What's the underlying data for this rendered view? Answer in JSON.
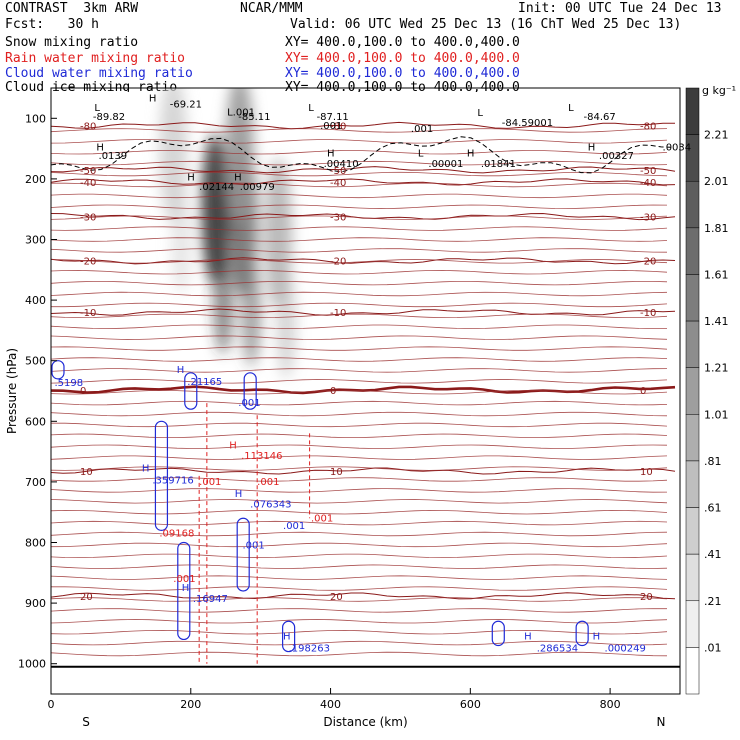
{
  "header": {
    "left1": "CONTRAST  3km ARW",
    "center1": "NCAR/MMM",
    "right1": "Init: 00 UTC Tue 24 Dec 13",
    "left2": "Fcst:   30 h",
    "right2": "Valid: 06 UTC Wed 25 Dec 13 (16 ChT Wed 25 Dec 13)",
    "fields": [
      {
        "label": "Snow mixing ratio",
        "xy": "XY= 400.0,100.0 to 400.0,400.0",
        "color": "#000000"
      },
      {
        "label": "Rain water mixing ratio",
        "xy": "XY= 400.0,100.0 to 400.0,400.0",
        "color": "#e02020"
      },
      {
        "label": "Cloud water mixing ratio",
        "xy": "XY= 400.0,100.0 to 400.0,400.0",
        "color": "#1f2ad6"
      },
      {
        "label": "Cloud ice mixing ratio",
        "xy": "XY= 400.0,100.0 to 400.0,400.0",
        "color": "#000000"
      }
    ]
  },
  "chart_data": {
    "type": "heatmap",
    "xlabel": "Distance (km)",
    "ylabel": "Pressure (hPa)",
    "xlim": [
      0,
      900
    ],
    "ylim": [
      1050,
      50
    ],
    "x_ticks": [
      0,
      200,
      400,
      600,
      800
    ],
    "y_ticks": [
      100,
      200,
      300,
      400,
      500,
      600,
      700,
      800,
      900,
      1000
    ],
    "x_end_labels": {
      "left": "S",
      "right": "N"
    },
    "colorbar": {
      "unit": "g kg⁻¹",
      "labels": [
        "2.21",
        "2.01",
        "1.81",
        "1.61",
        "1.41",
        "1.21",
        "1.01",
        ".81",
        ".61",
        ".41",
        ".21",
        ".01"
      ]
    },
    "snow_cores": [
      {
        "x": 235,
        "p": 250,
        "max": 1.9
      },
      {
        "x": 275,
        "p": 270,
        "max": 1.5
      },
      {
        "x": 325,
        "p": 290,
        "max": 0.6
      },
      {
        "x": 270,
        "p": 150,
        "max": 0.9
      },
      {
        "x": 175,
        "p": 150,
        "max": 0.3
      }
    ],
    "temperature_contours": [
      {
        "label": "-80",
        "p": 112
      },
      {
        "label": "-50",
        "p": 185
      },
      {
        "label": "-40",
        "p": 205
      },
      {
        "label": "-30",
        "p": 262
      },
      {
        "label": "-20",
        "p": 335
      },
      {
        "label": "-10",
        "p": 420
      },
      {
        "label": "0",
        "p": 548
      },
      {
        "label": "10",
        "p": 682
      },
      {
        "label": "20",
        "p": 888
      }
    ],
    "annotations_black": [
      {
        "text": "H",
        "x": 140,
        "p": 72
      },
      {
        "text": "-69.21",
        "x": 170,
        "p": 82
      },
      {
        "text": "L",
        "x": 62,
        "p": 88
      },
      {
        "text": "-89.82",
        "x": 60,
        "p": 103
      },
      {
        "text": "L.001",
        "x": 252,
        "p": 95
      },
      {
        "text": "-85.11",
        "x": 268,
        "p": 103
      },
      {
        "text": "L",
        "x": 368,
        "p": 88
      },
      {
        "text": "-87.11",
        "x": 380,
        "p": 103
      },
      {
        "text": ".001",
        "x": 385,
        "p": 118
      },
      {
        "text": ".001",
        "x": 515,
        "p": 123
      },
      {
        "text": "L",
        "x": 610,
        "p": 96
      },
      {
        "text": "-84.59001",
        "x": 645,
        "p": 113
      },
      {
        "text": "L",
        "x": 740,
        "p": 88
      },
      {
        "text": "-84.67",
        "x": 762,
        "p": 103
      },
      {
        "text": "H",
        "x": 65,
        "p": 153
      },
      {
        "text": ".0139",
        "x": 68,
        "p": 167
      },
      {
        "text": "H",
        "x": 395,
        "p": 163
      },
      {
        "text": ".00410",
        "x": 390,
        "p": 180
      },
      {
        "text": "L",
        "x": 525,
        "p": 163
      },
      {
        "text": ".00001",
        "x": 540,
        "p": 180
      },
      {
        "text": "H",
        "x": 595,
        "p": 163
      },
      {
        "text": ".01841",
        "x": 615,
        "p": 180
      },
      {
        "text": "H",
        "x": 768,
        "p": 153
      },
      {
        "text": ".00327",
        "x": 784,
        "p": 167
      },
      {
        "text": ".0034",
        "x": 875,
        "p": 153
      },
      {
        "text": "H",
        "x": 195,
        "p": 203
      },
      {
        "text": ".02144",
        "x": 212,
        "p": 218
      },
      {
        "text": "H",
        "x": 262,
        "p": 203
      },
      {
        "text": ".00979",
        "x": 270,
        "p": 218
      }
    ],
    "annotations_blue": [
      {
        "text": ".5198",
        "x": 5,
        "p": 542
      },
      {
        "text": "H",
        "x": 180,
        "p": 520
      },
      {
        "text": ".21165",
        "x": 195,
        "p": 540
      },
      {
        "text": ".001",
        "x": 268,
        "p": 575
      },
      {
        "text": "H",
        "x": 130,
        "p": 683
      },
      {
        "text": ".359716",
        "x": 145,
        "p": 703
      },
      {
        "text": "H",
        "x": 263,
        "p": 725
      },
      {
        "text": ".076343",
        "x": 285,
        "p": 742
      },
      {
        "text": ".001",
        "x": 332,
        "p": 778
      },
      {
        "text": ".001",
        "x": 274,
        "p": 810
      },
      {
        "text": "H",
        "x": 187,
        "p": 880
      },
      {
        "text": ".16947",
        "x": 203,
        "p": 898
      },
      {
        "text": "H",
        "x": 332,
        "p": 960
      },
      {
        "text": ".198263",
        "x": 340,
        "p": 980
      },
      {
        "text": "H",
        "x": 677,
        "p": 960
      },
      {
        "text": ".286534",
        "x": 695,
        "p": 980
      },
      {
        "text": "H",
        "x": 775,
        "p": 960
      },
      {
        "text": ".000249",
        "x": 792,
        "p": 980
      }
    ],
    "annotations_red": [
      {
        "text": "H",
        "x": 255,
        "p": 645
      },
      {
        "text": ".113146",
        "x": 272,
        "p": 662
      },
      {
        "text": ".001",
        "x": 212,
        "p": 705
      },
      {
        "text": ".001",
        "x": 295,
        "p": 705
      },
      {
        "text": ".001",
        "x": 372,
        "p": 765
      },
      {
        "text": ".09168",
        "x": 155,
        "p": 790
      },
      {
        "text": ".001",
        "x": 175,
        "p": 865
      }
    ]
  }
}
